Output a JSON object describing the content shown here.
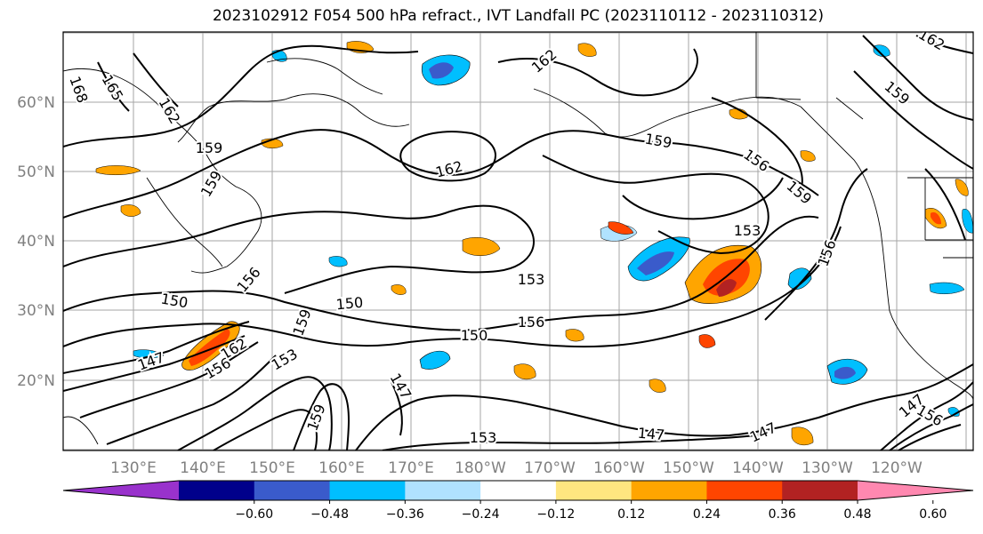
{
  "title": "2023102912 F054 500 hPa refract., IVT Landfall PC (2023110112 - 2023110312)",
  "lat_labels": [
    "60°N",
    "50°N",
    "40°N",
    "30°N",
    "20°N"
  ],
  "lon_labels": [
    "130°E",
    "140°E",
    "150°E",
    "160°E",
    "170°E",
    "180°W",
    "170°W",
    "160°W",
    "150°W",
    "140°W",
    "130°W",
    "120°W"
  ],
  "contour_labels": [
    "168",
    "165",
    "162",
    "159",
    "159",
    "162",
    "159",
    "156",
    "159",
    "153",
    "156",
    "153",
    "150",
    "150",
    "150",
    "156",
    "159",
    "162",
    "147",
    "156",
    "153",
    "159",
    "147",
    "153",
    "147",
    "147",
    "156",
    "147",
    "156",
    "162",
    "159",
    "162"
  ],
  "colorbar": {
    "ticks": [
      "−0.60",
      "−0.48",
      "−0.36",
      "−0.24",
      "−0.12",
      "0.12",
      "0.24",
      "0.36",
      "0.48",
      "0.60"
    ],
    "colors": [
      "#9932CC",
      "#00008B",
      "#3A5BCB",
      "#00BFFF",
      "#B0E2FF",
      "#FFFFFF",
      "#FFE680",
      "#FFA500",
      "#FF4500",
      "#B22222",
      "#FF88B0"
    ]
  }
}
